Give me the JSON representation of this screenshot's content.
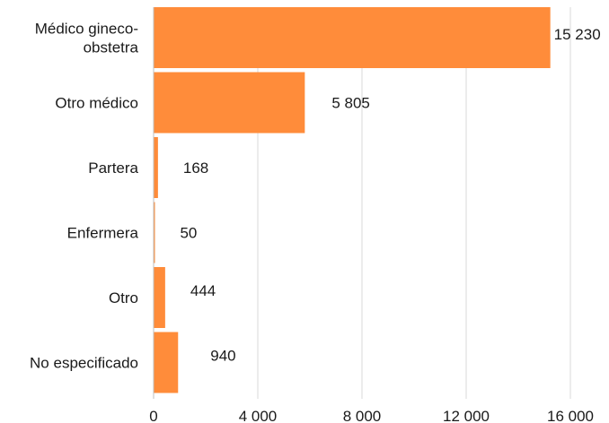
{
  "chart_data": {
    "type": "bar",
    "orientation": "horizontal",
    "categories": [
      [
        "Médico gineco-",
        "obstetra"
      ],
      [
        "Otro médico"
      ],
      [
        "Partera"
      ],
      [
        "Enfermera"
      ],
      [
        "Otro"
      ],
      [
        "No especificado"
      ]
    ],
    "values": [
      15230,
      5805,
      168,
      50,
      444,
      940
    ],
    "value_labels": [
      "15 230",
      "5 805",
      "168",
      "50",
      "444",
      "940"
    ],
    "x_ticks": [
      0,
      4000,
      8000,
      12000,
      16000
    ],
    "x_tick_labels": [
      "0",
      "4 000",
      "8 000",
      "12 000",
      "16 000"
    ],
    "xlim": [
      0,
      16000
    ],
    "grid": "vertical",
    "bar_color": "#FF8C3A",
    "title": "",
    "xlabel": "",
    "ylabel": ""
  }
}
